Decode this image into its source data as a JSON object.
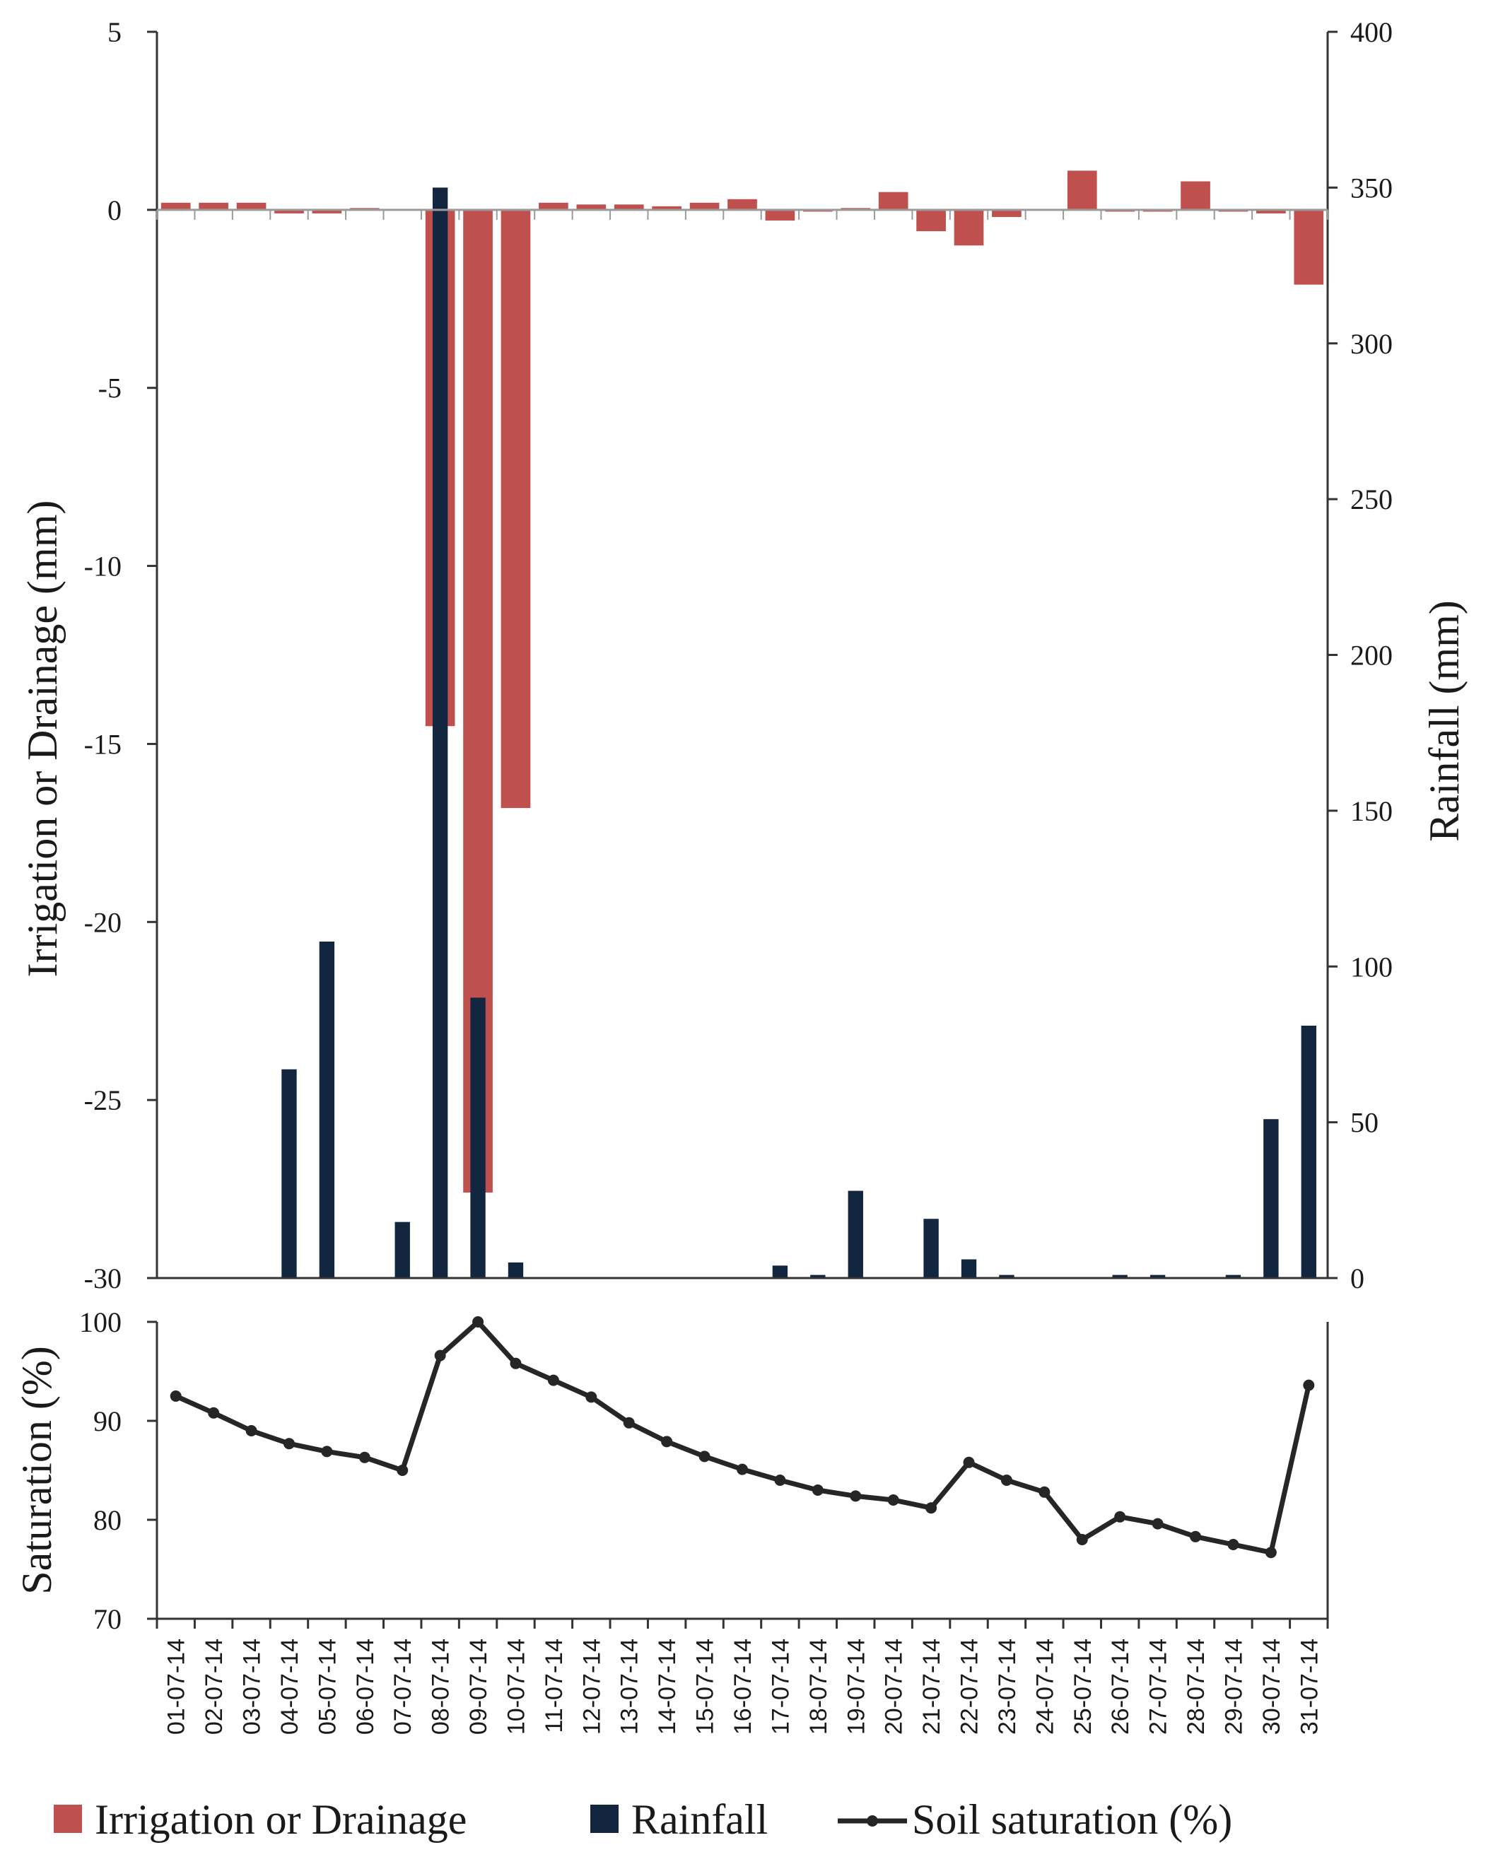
{
  "chart_data": [
    {
      "type": "bar",
      "title": "",
      "xlabel": "",
      "categories": [
        "01-07-14",
        "02-07-14",
        "03-07-14",
        "04-07-14",
        "05-07-14",
        "06-07-14",
        "07-07-14",
        "08-07-14",
        "09-07-14",
        "10-07-14",
        "11-07-14",
        "12-07-14",
        "13-07-14",
        "14-07-14",
        "15-07-14",
        "16-07-14",
        "17-07-14",
        "18-07-14",
        "19-07-14",
        "20-07-14",
        "21-07-14",
        "22-07-14",
        "23-07-14",
        "24-07-14",
        "25-07-14",
        "26-07-14",
        "27-07-14",
        "28-07-14",
        "29-07-14",
        "30-07-14",
        "31-07-14"
      ],
      "ylabel": "Irrigation or Drainage (mm)",
      "ylim": [
        -30,
        5
      ],
      "yticks": [
        "5",
        "0",
        "-5",
        "-10",
        "-15",
        "-20",
        "-25",
        "-30"
      ],
      "y2label": "Rainfall (mm)",
      "y2lim": [
        0,
        400
      ],
      "y2ticks": [
        "400",
        "350",
        "300",
        "250",
        "200",
        "150",
        "100",
        "50",
        "0"
      ],
      "series": [
        {
          "name": "Irrigation or Drainage",
          "axis": "left",
          "color": "#c0504d",
          "values": [
            0.2,
            0.2,
            0.2,
            -0.1,
            -0.1,
            0.05,
            0,
            -14.5,
            -27.6,
            -16.8,
            0.2,
            0.15,
            0.15,
            0.1,
            0.2,
            0.3,
            -0.3,
            -0.05,
            0.05,
            0.5,
            -0.6,
            -1.0,
            -0.2,
            0,
            1.1,
            -0.05,
            -0.05,
            0.8,
            -0.05,
            -0.1,
            -2.1
          ]
        },
        {
          "name": "Rainfall",
          "axis": "right",
          "color": "#13263f",
          "values": [
            0,
            0,
            0,
            67,
            108,
            0,
            18,
            350,
            90,
            5,
            0,
            0,
            0,
            0,
            0,
            0,
            4,
            1,
            28,
            0,
            19,
            6,
            1,
            0,
            0,
            1,
            1,
            0,
            1,
            51,
            81
          ]
        }
      ],
      "legend_position": "bottom"
    },
    {
      "type": "line",
      "title": "",
      "xlabel": "",
      "categories": [
        "01-07-14",
        "02-07-14",
        "03-07-14",
        "04-07-14",
        "05-07-14",
        "06-07-14",
        "07-07-14",
        "08-07-14",
        "09-07-14",
        "10-07-14",
        "11-07-14",
        "12-07-14",
        "13-07-14",
        "14-07-14",
        "15-07-14",
        "16-07-14",
        "17-07-14",
        "18-07-14",
        "19-07-14",
        "20-07-14",
        "21-07-14",
        "22-07-14",
        "23-07-14",
        "24-07-14",
        "25-07-14",
        "26-07-14",
        "27-07-14",
        "28-07-14",
        "29-07-14",
        "30-07-14",
        "31-07-14"
      ],
      "ylabel": "Saturation (%)",
      "ylim": [
        70,
        100
      ],
      "yticks": [
        "100",
        "90",
        "80",
        "70"
      ],
      "series": [
        {
          "name": "Soil saturation (%)",
          "color": "#262626",
          "values": [
            92.5,
            90.8,
            89.0,
            87.7,
            86.9,
            86.3,
            85.0,
            96.6,
            100.0,
            95.8,
            94.1,
            92.4,
            89.8,
            87.9,
            86.4,
            85.1,
            84.0,
            83.0,
            82.4,
            82.0,
            81.2,
            85.8,
            84.0,
            82.8,
            78.0,
            80.3,
            79.6,
            78.3,
            77.5,
            76.7,
            93.6
          ]
        }
      ]
    }
  ],
  "legend": {
    "irrigation_label": "Irrigation or Drainage",
    "rainfall_label": "Rainfall",
    "saturation_label": "Soil saturation (%)",
    "irrigation_color": "#c0504d",
    "rainfall_color": "#13263f",
    "saturation_color": "#262626"
  }
}
